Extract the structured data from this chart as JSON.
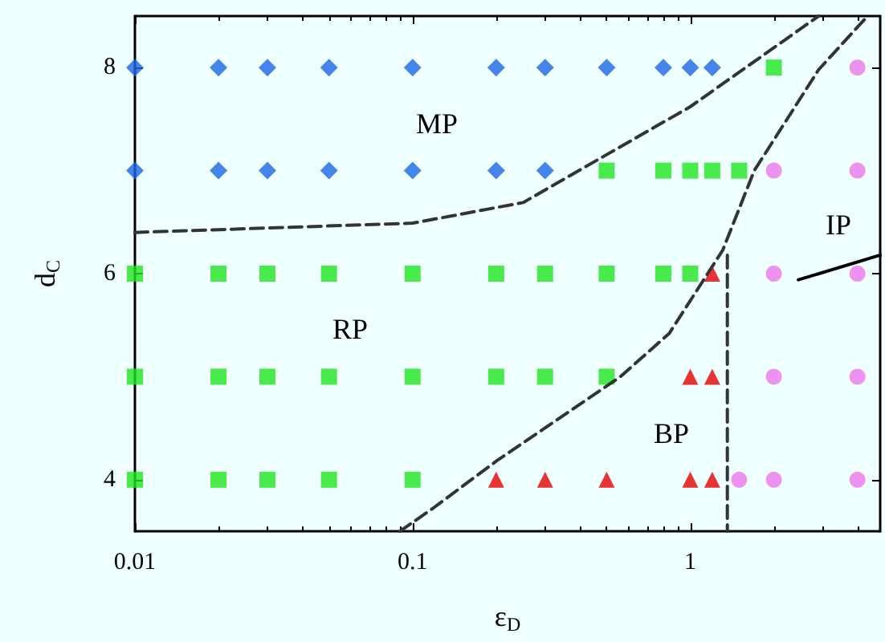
{
  "chart_data": {
    "type": "scatter",
    "xlabel": "ε$_{D}$",
    "ylabel": "d$_{C}$",
    "log": "x",
    "xlim": [
      0.01,
      4.83
    ],
    "xticks": [
      0.01,
      0.1,
      1
    ],
    "ylim": [
      3.5,
      8.5
    ],
    "yticks": [
      4,
      6,
      8
    ],
    "grid": false,
    "series": [
      {
        "marker": "diamond",
        "color": "#1a66e6",
        "x": [
          0.01,
          0.02,
          0.03,
          0.05,
          0.1,
          0.2,
          0.3,
          0.5,
          0.8,
          1,
          1.2,
          0.01,
          0.02,
          0.03,
          0.05,
          0.1,
          0.2,
          0.3
        ],
        "values": [
          8,
          8,
          8,
          8,
          8,
          8,
          8,
          8,
          8,
          8,
          8,
          7,
          7,
          7,
          7,
          7,
          7,
          7
        ]
      },
      {
        "marker": "square",
        "color": "#1ee61e",
        "x": [
          2,
          0.5,
          0.8,
          1,
          1.2,
          1.5,
          0.01,
          0.02,
          0.03,
          0.05,
          0.1,
          0.2,
          0.3,
          0.5,
          0.8,
          1,
          0.01,
          0.02,
          0.03,
          0.05,
          0.1,
          0.2,
          0.3,
          0.5,
          0.01,
          0.02,
          0.03,
          0.05,
          0.1
        ],
        "values": [
          8,
          7,
          7,
          7,
          7,
          7,
          6,
          6,
          6,
          6,
          6,
          6,
          6,
          6,
          6,
          6,
          5,
          5,
          5,
          5,
          5,
          5,
          5,
          5,
          4,
          4,
          4,
          4,
          4
        ]
      },
      {
        "marker": "triangle",
        "color": "#e60000",
        "x": [
          1.2,
          1,
          1.2,
          0.2,
          0.3,
          0.5,
          1,
          1.2
        ],
        "values": [
          6,
          5,
          5,
          4,
          4,
          4,
          4,
          4
        ]
      },
      {
        "marker": "circle",
        "color": "#ee77ee",
        "x": [
          4,
          2,
          4,
          2,
          4,
          2,
          4,
          1.5,
          2,
          4
        ],
        "values": [
          8,
          7,
          7,
          6,
          6,
          5,
          5,
          4,
          4,
          4
        ]
      },
      {
        "type": "line",
        "marker": "none",
        "line_style": "dashed",
        "color": "#333333",
        "x": [
          0.01,
          0.1,
          0.25,
          1,
          2.9
        ],
        "values": [
          6.4,
          6.49,
          6.69,
          7.62,
          8.5
        ]
      },
      {
        "type": "line",
        "marker": "none",
        "line_style": "dashed",
        "color": "#333333",
        "x": [
          0.09,
          0.118,
          0.2,
          0.56,
          0.84,
          1.31,
          1.7,
          2.9,
          4.35
        ],
        "values": [
          3.5,
          3.72,
          4.18,
          5.0,
          5.42,
          6.23,
          7.0,
          7.98,
          8.5
        ]
      },
      {
        "type": "line",
        "marker": "none",
        "line_style": "dashed",
        "color": "#333333",
        "x": [
          1.36,
          1.36
        ],
        "values": [
          6.18,
          3.5
        ]
      },
      {
        "type": "line",
        "marker": "none",
        "line_style": "solid",
        "color": "#000000",
        "x": [
          2.45,
          4.83
        ],
        "values": [
          5.94,
          6.18
        ]
      }
    ],
    "annotations": [
      "MP",
      "RP",
      "BP",
      "IP"
    ]
  }
}
